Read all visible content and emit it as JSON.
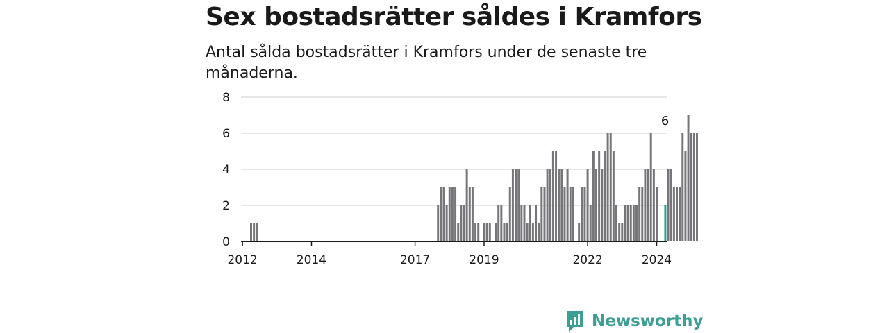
{
  "header": {
    "title": "Sex bostadsrätter såldes i Kramfors",
    "subtitle": "Antal sålda bostadsrätter i Kramfors under de senaste tre månaderna."
  },
  "brand": {
    "name": "Newsworthy",
    "icon": "newsworthy-logo-icon"
  },
  "colors": {
    "bar": "#76767a",
    "highlight": "#2a9d8f",
    "brand": "#3d9e96",
    "grid": "#dddddd"
  },
  "chart_data": {
    "type": "bar",
    "x_start": "2012-01",
    "x_end": "2024-05",
    "ylim": [
      0,
      8
    ],
    "yticks": [
      "0",
      "2",
      "4",
      "6",
      "8"
    ],
    "xticks": [
      {
        "label": "2012",
        "month": "2012-01"
      },
      {
        "label": "2014",
        "month": "2014-01"
      },
      {
        "label": "2017",
        "month": "2017-01"
      },
      {
        "label": "2019",
        "month": "2019-01"
      },
      {
        "label": "2022",
        "month": "2022-01"
      },
      {
        "label": "2024",
        "month": "2024-01"
      }
    ],
    "values": [
      0,
      0,
      0,
      1,
      1,
      1,
      0,
      0,
      0,
      0,
      0,
      0,
      0,
      0,
      0,
      0,
      0,
      0,
      0,
      0,
      0,
      0,
      0,
      0,
      0,
      0,
      0,
      0,
      0,
      0,
      0,
      0,
      0,
      0,
      0,
      0,
      0,
      0,
      0,
      0,
      0,
      0,
      0,
      0,
      0,
      0,
      0,
      0,
      0,
      0,
      0,
      0,
      0,
      0,
      0,
      0,
      0,
      0,
      0,
      0,
      0,
      0,
      0,
      0,
      0,
      0,
      0,
      0,
      2,
      3,
      3,
      2,
      3,
      3,
      3,
      1,
      2,
      2,
      4,
      3,
      3,
      1,
      1,
      0,
      1,
      1,
      1,
      0,
      1,
      2,
      2,
      1,
      1,
      3,
      4,
      4,
      4,
      2,
      2,
      1,
      2,
      1,
      2,
      1,
      3,
      3,
      4,
      4,
      5,
      5,
      4,
      4,
      3,
      4,
      3,
      3,
      0,
      1,
      3,
      3,
      4,
      2,
      5,
      4,
      5,
      4,
      5,
      6,
      6,
      5,
      2,
      1,
      1,
      2,
      2,
      2,
      2,
      2,
      3,
      3,
      4,
      4,
      6,
      4,
      3,
      0,
      0,
      2,
      4,
      4,
      3,
      3,
      3,
      6,
      5,
      7,
      6,
      6,
      6,
      0,
      0,
      0,
      0,
      0,
      0,
      0,
      0,
      0
    ],
    "highlight": {
      "month": "2024-04",
      "value": 6,
      "label": "6"
    }
  }
}
